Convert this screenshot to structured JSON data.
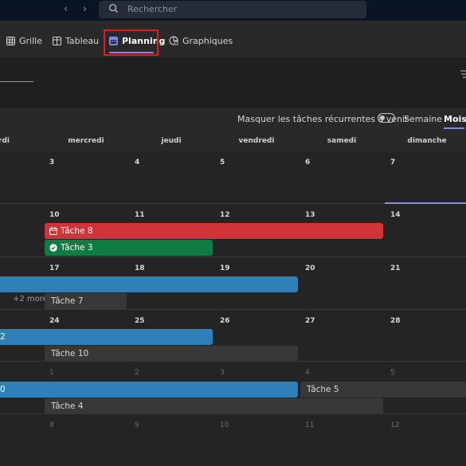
{
  "search": {
    "placeholder": "Rechercher"
  },
  "tabs": [
    {
      "label": "Grille",
      "icon": "grid-icon"
    },
    {
      "label": "Tableau",
      "icon": "board-icon"
    },
    {
      "label": "Planning",
      "icon": "calendar-icon",
      "active": true
    },
    {
      "label": "Graphiques",
      "icon": "chart-icon"
    }
  ],
  "options": {
    "mask_recurring": "Masquer les tâches récurrentes à venir",
    "mask_recurring_enabled": false,
    "view_week": "Semaine",
    "view_month": "Mois",
    "active_view": "Mois"
  },
  "days": [
    "ardi",
    "mercredi",
    "jeudi",
    "vendredi",
    "samedi",
    "dimanche"
  ],
  "weeks": [
    {
      "dates": [
        "3",
        "4",
        "5",
        "6",
        "7"
      ]
    },
    {
      "dates": [
        "10",
        "11",
        "12",
        "13",
        "14"
      ]
    },
    {
      "dates": [
        "17",
        "18",
        "19",
        "20",
        "21"
      ]
    },
    {
      "dates": [
        "24",
        "25",
        "26",
        "27",
        "28"
      ]
    },
    {
      "dates": [
        "1",
        "2",
        "3",
        "4",
        "5"
      ]
    },
    {
      "dates": [
        "8",
        "9",
        "10",
        "11",
        "12"
      ]
    }
  ],
  "tasks": {
    "tache8": {
      "label": "Tâche 8",
      "color": "#d13438",
      "icon": "calendar-icon"
    },
    "tache3": {
      "label": "Tâche 3",
      "color": "#107c41",
      "icon": "check-circle-icon"
    },
    "tache7": {
      "label": "Tâche 7"
    },
    "week4_bar_label": "2",
    "tache10": {
      "label": "Tâche 10"
    },
    "week5_bar_label": "0",
    "tache5": {
      "label": "Tâche 5"
    },
    "tache4": {
      "label": "Tâche 4"
    }
  },
  "more_label": "+2 more",
  "colors": {
    "accent": "#7f85f5",
    "blue_task": "#2f7fb8",
    "highlight": "#e01b24"
  }
}
